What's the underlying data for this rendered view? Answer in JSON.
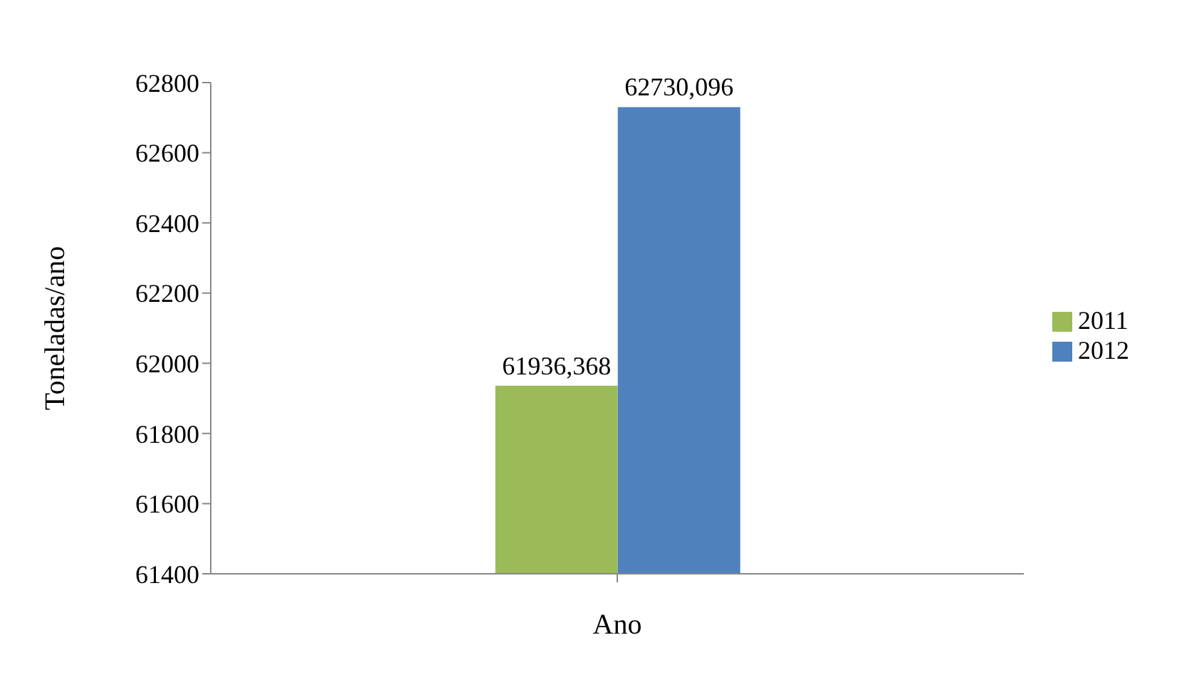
{
  "chart_data": {
    "type": "bar",
    "xlabel": "Ano",
    "ylabel": "Toneladas/ano",
    "categories": [
      null
    ],
    "series": [
      {
        "name": "2011",
        "color": "#9bbb59",
        "values": [
          61936.368
        ],
        "value_labels": [
          "61936,368"
        ]
      },
      {
        "name": "2012",
        "color": "#4f81bd",
        "values": [
          62730.096
        ],
        "value_labels": [
          "62730,096"
        ]
      }
    ],
    "ylim": [
      61400,
      62800
    ],
    "yticks": [
      61400,
      61600,
      61800,
      62000,
      62200,
      62400,
      62600,
      62800
    ],
    "grid": false,
    "legend": "right"
  }
}
